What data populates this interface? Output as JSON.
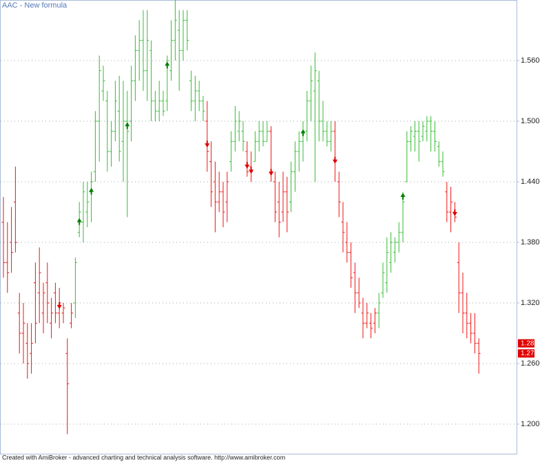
{
  "chart_data": {
    "type": "ohlc",
    "title": "AAC - New formula",
    "footer": "Created with AmiBroker - advanced charting and technical analysis software. http://www.amibroker.com",
    "ylim": [
      1.17,
      1.62
    ],
    "yticks": [
      {
        "value": 1.2,
        "label": "1.200"
      },
      {
        "value": 1.26,
        "label": "1.260"
      },
      {
        "value": 1.32,
        "label": "1.320"
      },
      {
        "value": 1.38,
        "label": "1.380"
      },
      {
        "value": 1.44,
        "label": "1.440"
      },
      {
        "value": 1.5,
        "label": "1.500"
      },
      {
        "value": 1.56,
        "label": "1.560"
      }
    ],
    "grid": true,
    "high": [
      1.425,
      1.4,
      1.415,
      1.455,
      1.33,
      1.32,
      1.3,
      1.3,
      1.36,
      1.375,
      1.34,
      1.36,
      1.325,
      1.34,
      1.335,
      1.32,
      1.285,
      1.32,
      1.365,
      1.42,
      1.44,
      1.44,
      1.45,
      1.51,
      1.565,
      1.555,
      1.53,
      1.5,
      1.54,
      1.545,
      1.54,
      1.53,
      1.555,
      1.585,
      1.6,
      1.61,
      1.61,
      1.58,
      1.53,
      1.54,
      1.53,
      1.565,
      1.6,
      1.625,
      1.61,
      1.61,
      1.61,
      1.55,
      1.545,
      1.54,
      1.525,
      1.52,
      1.48,
      1.46,
      1.45,
      1.44,
      1.45,
      1.49,
      1.515,
      1.51,
      1.5,
      1.48,
      1.47,
      1.49,
      1.5,
      1.5,
      1.5,
      1.495,
      1.45,
      1.44,
      1.45,
      1.445,
      1.46,
      1.48,
      1.49,
      1.5,
      1.53,
      1.555,
      1.568,
      1.55,
      1.52,
      1.5,
      1.5,
      1.5,
      1.45,
      1.42,
      1.4,
      1.38,
      1.36,
      1.345,
      1.325,
      1.32,
      1.31,
      1.315,
      1.33,
      1.36,
      1.385,
      1.39,
      1.385,
      1.4,
      1.43,
      1.49,
      1.495,
      1.5,
      1.5,
      1.5,
      1.505,
      1.505,
      1.5,
      1.48,
      1.47,
      1.44,
      1.435,
      1.42,
      1.38,
      1.35,
      1.33,
      1.31,
      1.31,
      1.285
    ],
    "low": [
      1.345,
      1.33,
      1.35,
      1.37,
      1.27,
      1.26,
      1.245,
      1.25,
      1.28,
      1.3,
      1.29,
      1.3,
      1.285,
      1.3,
      1.295,
      1.3,
      1.19,
      1.295,
      1.305,
      1.385,
      1.38,
      1.395,
      1.4,
      1.44,
      1.46,
      1.52,
      1.45,
      1.455,
      1.48,
      1.46,
      1.44,
      1.405,
      1.48,
      1.52,
      1.54,
      1.53,
      1.52,
      1.5,
      1.5,
      1.5,
      1.505,
      1.51,
      1.54,
      1.56,
      1.53,
      1.56,
      1.57,
      1.51,
      1.5,
      1.51,
      1.5,
      1.45,
      1.415,
      1.39,
      1.41,
      1.395,
      1.4,
      1.45,
      1.47,
      1.48,
      1.47,
      1.445,
      1.44,
      1.46,
      1.47,
      1.475,
      1.48,
      1.44,
      1.4,
      1.385,
      1.4,
      1.39,
      1.41,
      1.43,
      1.45,
      1.46,
      1.48,
      1.5,
      1.44,
      1.48,
      1.48,
      1.475,
      1.47,
      1.44,
      1.405,
      1.37,
      1.36,
      1.335,
      1.31,
      1.315,
      1.285,
      1.295,
      1.285,
      1.29,
      1.295,
      1.325,
      1.33,
      1.35,
      1.36,
      1.37,
      1.38,
      1.44,
      1.47,
      1.47,
      1.46,
      1.48,
      1.48,
      1.47,
      1.47,
      1.455,
      1.445,
      1.4,
      1.39,
      1.4,
      1.31,
      1.29,
      1.285,
      1.28,
      1.27,
      1.25
    ],
    "open": [
      1.4,
      1.36,
      1.38,
      1.42,
      1.31,
      1.29,
      1.28,
      1.27,
      1.34,
      1.33,
      1.31,
      1.34,
      1.3,
      1.33,
      1.31,
      1.31,
      1.27,
      1.3,
      1.32,
      1.39,
      1.4,
      1.41,
      1.43,
      1.45,
      1.5,
      1.53,
      1.52,
      1.47,
      1.49,
      1.51,
      1.48,
      1.5,
      1.5,
      1.54,
      1.57,
      1.58,
      1.55,
      1.57,
      1.52,
      1.51,
      1.52,
      1.52,
      1.55,
      1.58,
      1.59,
      1.57,
      1.6,
      1.54,
      1.52,
      1.53,
      1.52,
      1.5,
      1.46,
      1.44,
      1.42,
      1.43,
      1.42,
      1.46,
      1.48,
      1.49,
      1.49,
      1.47,
      1.455,
      1.46,
      1.48,
      1.49,
      1.48,
      1.49,
      1.44,
      1.42,
      1.41,
      1.43,
      1.42,
      1.45,
      1.47,
      1.48,
      1.49,
      1.52,
      1.53,
      1.54,
      1.5,
      1.49,
      1.48,
      1.49,
      1.44,
      1.4,
      1.38,
      1.37,
      1.35,
      1.33,
      1.31,
      1.3,
      1.3,
      1.3,
      1.31,
      1.33,
      1.34,
      1.36,
      1.37,
      1.38,
      1.39,
      1.44,
      1.48,
      1.485,
      1.49,
      1.485,
      1.49,
      1.5,
      1.49,
      1.475,
      1.46,
      1.43,
      1.41,
      1.41,
      1.36,
      1.33,
      1.31,
      1.3,
      1.29,
      1.28
    ],
    "close": [
      1.36,
      1.35,
      1.37,
      1.38,
      1.29,
      1.3,
      1.26,
      1.28,
      1.3,
      1.35,
      1.33,
      1.32,
      1.31,
      1.31,
      1.32,
      1.315,
      1.24,
      1.31,
      1.36,
      1.41,
      1.43,
      1.42,
      1.44,
      1.5,
      1.55,
      1.54,
      1.47,
      1.49,
      1.52,
      1.47,
      1.5,
      1.49,
      1.54,
      1.57,
      1.58,
      1.55,
      1.58,
      1.52,
      1.51,
      1.52,
      1.51,
      1.56,
      1.58,
      1.6,
      1.57,
      1.6,
      1.58,
      1.52,
      1.53,
      1.52,
      1.51,
      1.47,
      1.43,
      1.42,
      1.43,
      1.41,
      1.44,
      1.48,
      1.5,
      1.5,
      1.48,
      1.45,
      1.45,
      1.48,
      1.49,
      1.48,
      1.49,
      1.45,
      1.41,
      1.4,
      1.43,
      1.41,
      1.45,
      1.47,
      1.48,
      1.49,
      1.52,
      1.54,
      1.55,
      1.5,
      1.49,
      1.48,
      1.49,
      1.46,
      1.42,
      1.39,
      1.37,
      1.345,
      1.33,
      1.32,
      1.3,
      1.31,
      1.295,
      1.31,
      1.32,
      1.35,
      1.37,
      1.38,
      1.38,
      1.39,
      1.42,
      1.48,
      1.49,
      1.49,
      1.48,
      1.495,
      1.5,
      1.49,
      1.48,
      1.46,
      1.45,
      1.41,
      1.42,
      1.405,
      1.33,
      1.31,
      1.3,
      1.29,
      1.28,
      1.27
    ],
    "bar_colors": [
      "#e11",
      "#e11",
      "#e11",
      "#e11",
      "#e11",
      "#e11",
      "#e11",
      "#e11",
      "#e11",
      "#e11",
      "#e11",
      "#e11",
      "#e11",
      "#e11",
      "#e11",
      "#e11",
      "#e11",
      "#e11",
      "#3b3",
      "#3b3",
      "#3b3",
      "#3b3",
      "#3b3",
      "#3b3",
      "#3b3",
      "#3b3",
      "#3b3",
      "#3b3",
      "#3b3",
      "#3b3",
      "#3b3",
      "#3b3",
      "#3b3",
      "#3b3",
      "#3b3",
      "#3b3",
      "#3b3",
      "#3b3",
      "#3b3",
      "#3b3",
      "#3b3",
      "#3b3",
      "#3b3",
      "#3b3",
      "#3b3",
      "#3b3",
      "#3b3",
      "#3b3",
      "#3b3",
      "#3b3",
      "#3b3",
      "#e11",
      "#e11",
      "#e11",
      "#e11",
      "#e11",
      "#e11",
      "#3b3",
      "#3b3",
      "#3b3",
      "#3b3",
      "#e11",
      "#e11",
      "#3b3",
      "#3b3",
      "#3b3",
      "#3b3",
      "#e11",
      "#e11",
      "#e11",
      "#e11",
      "#e11",
      "#3b3",
      "#3b3",
      "#3b3",
      "#3b3",
      "#3b3",
      "#3b3",
      "#3b3",
      "#3b3",
      "#3b3",
      "#3b3",
      "#3b3",
      "#e11",
      "#e11",
      "#e11",
      "#e11",
      "#e11",
      "#e11",
      "#e11",
      "#e11",
      "#e11",
      "#e11",
      "#e11",
      "#3b3",
      "#3b3",
      "#3b3",
      "#3b3",
      "#3b3",
      "#3b3",
      "#3b3",
      "#3b3",
      "#3b3",
      "#3b3",
      "#3b3",
      "#3b3",
      "#3b3",
      "#3b3",
      "#3b3",
      "#3b3",
      "#3b3",
      "#e11",
      "#e11",
      "#e11",
      "#e11",
      "#e11",
      "#e11",
      "#e11",
      "#e11",
      "#e11"
    ],
    "buy_color": "#008000",
    "sell_color": "#e00000",
    "buy_signals": [
      null,
      null,
      null,
      null,
      null,
      null,
      null,
      null,
      null,
      null,
      null,
      null,
      null,
      null,
      null,
      null,
      null,
      null,
      null,
      1.4,
      null,
      null,
      1.43,
      null,
      null,
      null,
      null,
      null,
      null,
      null,
      null,
      1.495,
      null,
      null,
      null,
      null,
      null,
      null,
      null,
      null,
      null,
      1.555,
      null,
      null,
      null,
      null,
      null,
      null,
      null,
      null,
      null,
      null,
      null,
      null,
      null,
      null,
      null,
      null,
      null,
      null,
      null,
      null,
      null,
      null,
      null,
      null,
      null,
      null,
      null,
      null,
      null,
      null,
      null,
      null,
      null,
      1.488,
      null,
      null,
      null,
      null,
      null,
      null,
      null,
      null,
      null,
      null,
      null,
      null,
      null,
      null,
      null,
      null,
      null,
      null,
      null,
      null,
      null,
      null,
      null,
      null,
      1.425,
      null,
      null,
      null,
      null,
      null,
      null,
      null,
      null,
      null,
      null,
      null,
      null,
      null,
      null,
      null,
      null,
      null,
      null,
      null
    ],
    "sell_signals": [
      null,
      null,
      null,
      null,
      null,
      null,
      null,
      null,
      null,
      null,
      null,
      null,
      null,
      null,
      1.318,
      null,
      null,
      null,
      null,
      null,
      null,
      null,
      null,
      null,
      null,
      null,
      null,
      null,
      null,
      null,
      null,
      null,
      null,
      null,
      null,
      null,
      null,
      null,
      null,
      null,
      null,
      null,
      null,
      null,
      null,
      null,
      null,
      null,
      null,
      null,
      null,
      1.478,
      null,
      null,
      null,
      null,
      null,
      null,
      null,
      null,
      null,
      1.457,
      1.452,
      null,
      null,
      null,
      null,
      1.45,
      null,
      null,
      null,
      null,
      null,
      null,
      null,
      null,
      null,
      null,
      null,
      null,
      null,
      null,
      null,
      1.462,
      null,
      null,
      null,
      null,
      null,
      null,
      null,
      null,
      null,
      null,
      null,
      null,
      null,
      null,
      null,
      null,
      null,
      null,
      null,
      null,
      null,
      null,
      null,
      null,
      null,
      null,
      null,
      null,
      null,
      1.41,
      null,
      null,
      null,
      null,
      null,
      null
    ],
    "price_labels": [
      {
        "value": 1.28,
        "label": "1.28"
      },
      {
        "value": 1.27,
        "label": "1.27"
      }
    ],
    "price_label_color": "#e00000"
  }
}
